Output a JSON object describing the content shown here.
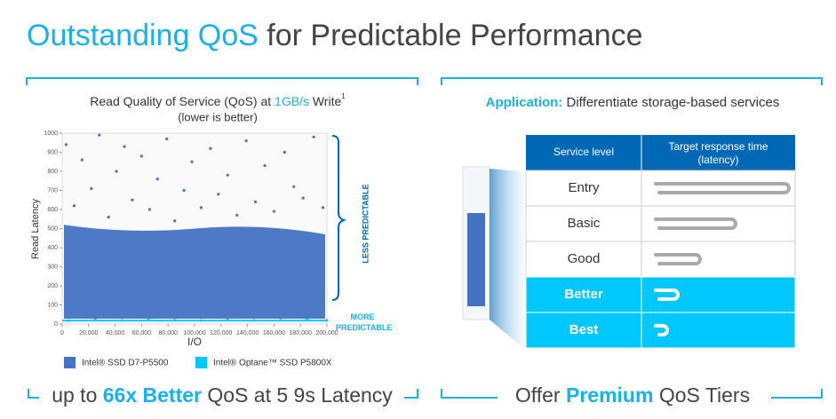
{
  "header": {
    "title_highlight": "Outstanding QoS",
    "title_rest": "for Predictable Performance"
  },
  "chart_data": {
    "type": "scatter",
    "title_start": "Read Quality of Service (QoS) at",
    "title_highlight": "1GB/s",
    "title_end": "Write",
    "title_note": "1",
    "subtitle": "(lower is better)",
    "xlabel": "I/O",
    "ylabel": "Read Latency",
    "xlim": [
      0,
      200000
    ],
    "ylim": [
      0,
      1000
    ],
    "xticks": [
      0,
      {
        "value": 20000,
        "label": "20,000"
      },
      {
        "value": 40000,
        "label": "40,000"
      },
      {
        "value": 60000,
        "label": "60,000"
      },
      {
        "value": 80000,
        "label": "80,000"
      },
      {
        "value": 100000,
        "label": "100,000"
      },
      {
        "value": 120000,
        "label": "120,000"
      },
      {
        "value": 140000,
        "label": "140,000"
      },
      {
        "value": 160000,
        "label": "160,000"
      },
      {
        "value": 180000,
        "label": "180,000"
      },
      {
        "value": 200000,
        "label": "200,000"
      }
    ],
    "yticks": [
      0,
      100,
      200,
      300,
      400,
      500,
      600,
      700,
      800,
      900,
      1000
    ],
    "series": [
      {
        "name": "Intel® SSD D7-P5500",
        "color": "#4472c4",
        "x": [
          3000,
          9000,
          15000,
          22000,
          28000,
          35000,
          41000,
          47000,
          53000,
          60000,
          66000,
          72000,
          79000,
          85000,
          92000,
          98000,
          105000,
          112000,
          118000,
          125000,
          132000,
          139000,
          146000,
          153000,
          160000,
          168000,
          175000,
          182000,
          190000,
          197000
        ],
        "values": [
          940,
          620,
          860,
          710,
          990,
          560,
          800,
          930,
          650,
          880,
          600,
          760,
          970,
          540,
          700,
          850,
          610,
          920,
          680,
          780,
          570,
          960,
          640,
          830,
          590,
          900,
          720,
          660,
          980,
          610
        ]
      },
      {
        "name": "Intel® Optane™ SSD P5800X",
        "color": "#00c7fd",
        "x": [
          5000,
          25000,
          45000,
          65000,
          85000,
          105000,
          125000,
          145000,
          165000,
          185000,
          200000
        ],
        "values": [
          18,
          22,
          19,
          21,
          20,
          18,
          23,
          19,
          20,
          22,
          19
        ]
      }
    ],
    "annotations": {
      "less": "LESS PREDICTABLE",
      "more": "MORE PREDICTABLE"
    }
  },
  "left_footer": {
    "start": "up to",
    "highlight": "66x Better",
    "end": "QoS at 5 9s Latency"
  },
  "right_panel": {
    "label": "Application:",
    "text": "Differentiate storage-based services",
    "table": {
      "headers": [
        "Service level",
        "Target response time (latency)"
      ],
      "rows": [
        "Entry",
        "Basic",
        "Good",
        "Better",
        "Best"
      ]
    }
  },
  "right_footer": {
    "start": "Offer",
    "highlight": "Premium",
    "end": "QoS Tiers"
  }
}
